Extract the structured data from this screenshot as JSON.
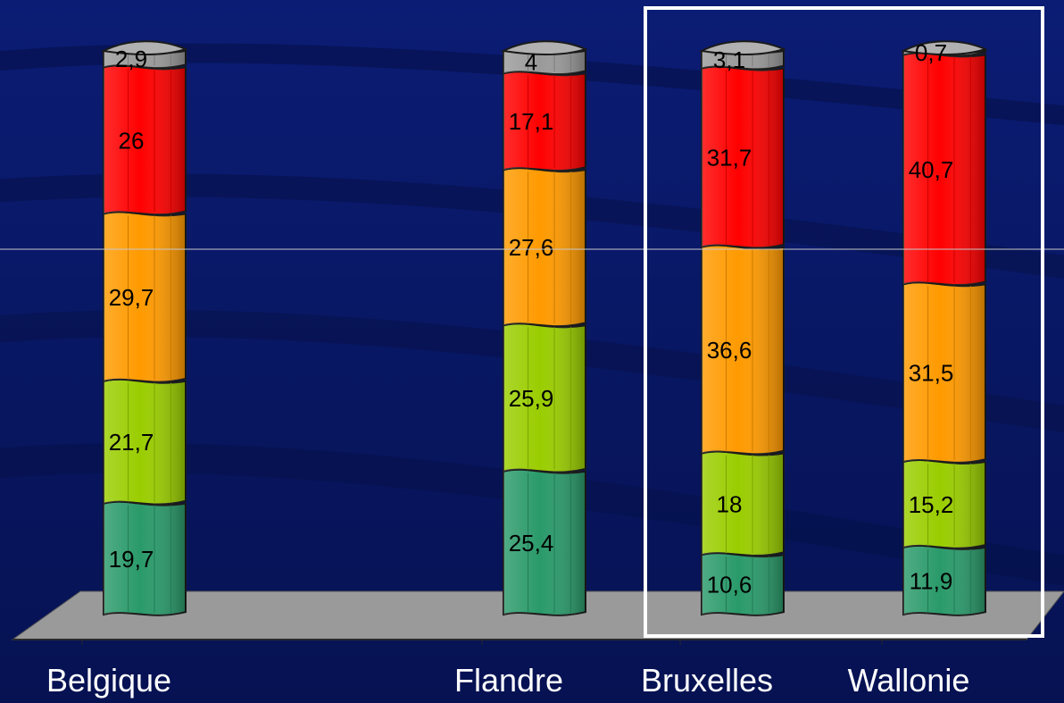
{
  "chart_data": {
    "type": "bar",
    "stacked": true,
    "three_d": true,
    "categories": [
      "Belgique",
      "Flandre",
      "Bruxelles",
      "Wallonie"
    ],
    "series": [
      {
        "color": "#2a9a6a",
        "values": [
          19.7,
          25.4,
          10.6,
          11.9
        ]
      },
      {
        "color": "#9acd00",
        "values": [
          21.7,
          25.9,
          18.0,
          15.2
        ]
      },
      {
        "color": "#ff9a00",
        "values": [
          29.7,
          27.6,
          36.6,
          31.5
        ]
      },
      {
        "color": "#ff0000",
        "values": [
          26.0,
          17.1,
          31.7,
          40.7
        ]
      },
      {
        "color": "#9a9a9a",
        "values": [
          2.9,
          4.0,
          3.1,
          0.7
        ]
      }
    ],
    "data_labels": [
      [
        "19,7",
        "21,7",
        "29,7",
        "26",
        "2,9"
      ],
      [
        "25,4",
        "25,9",
        "27,6",
        "17,1",
        "4"
      ],
      [
        "10,6",
        "18",
        "36,6",
        "31,7",
        "3,1"
      ],
      [
        "11,9",
        "15,2",
        "31,5",
        "40,7",
        "0,7"
      ]
    ],
    "ylim": [
      0,
      100
    ],
    "legend": "none",
    "highlight": [
      "Bruxelles",
      "Wallonie"
    ],
    "background_color": "#0a1a6b",
    "floor_color": "#9a9a9a"
  }
}
